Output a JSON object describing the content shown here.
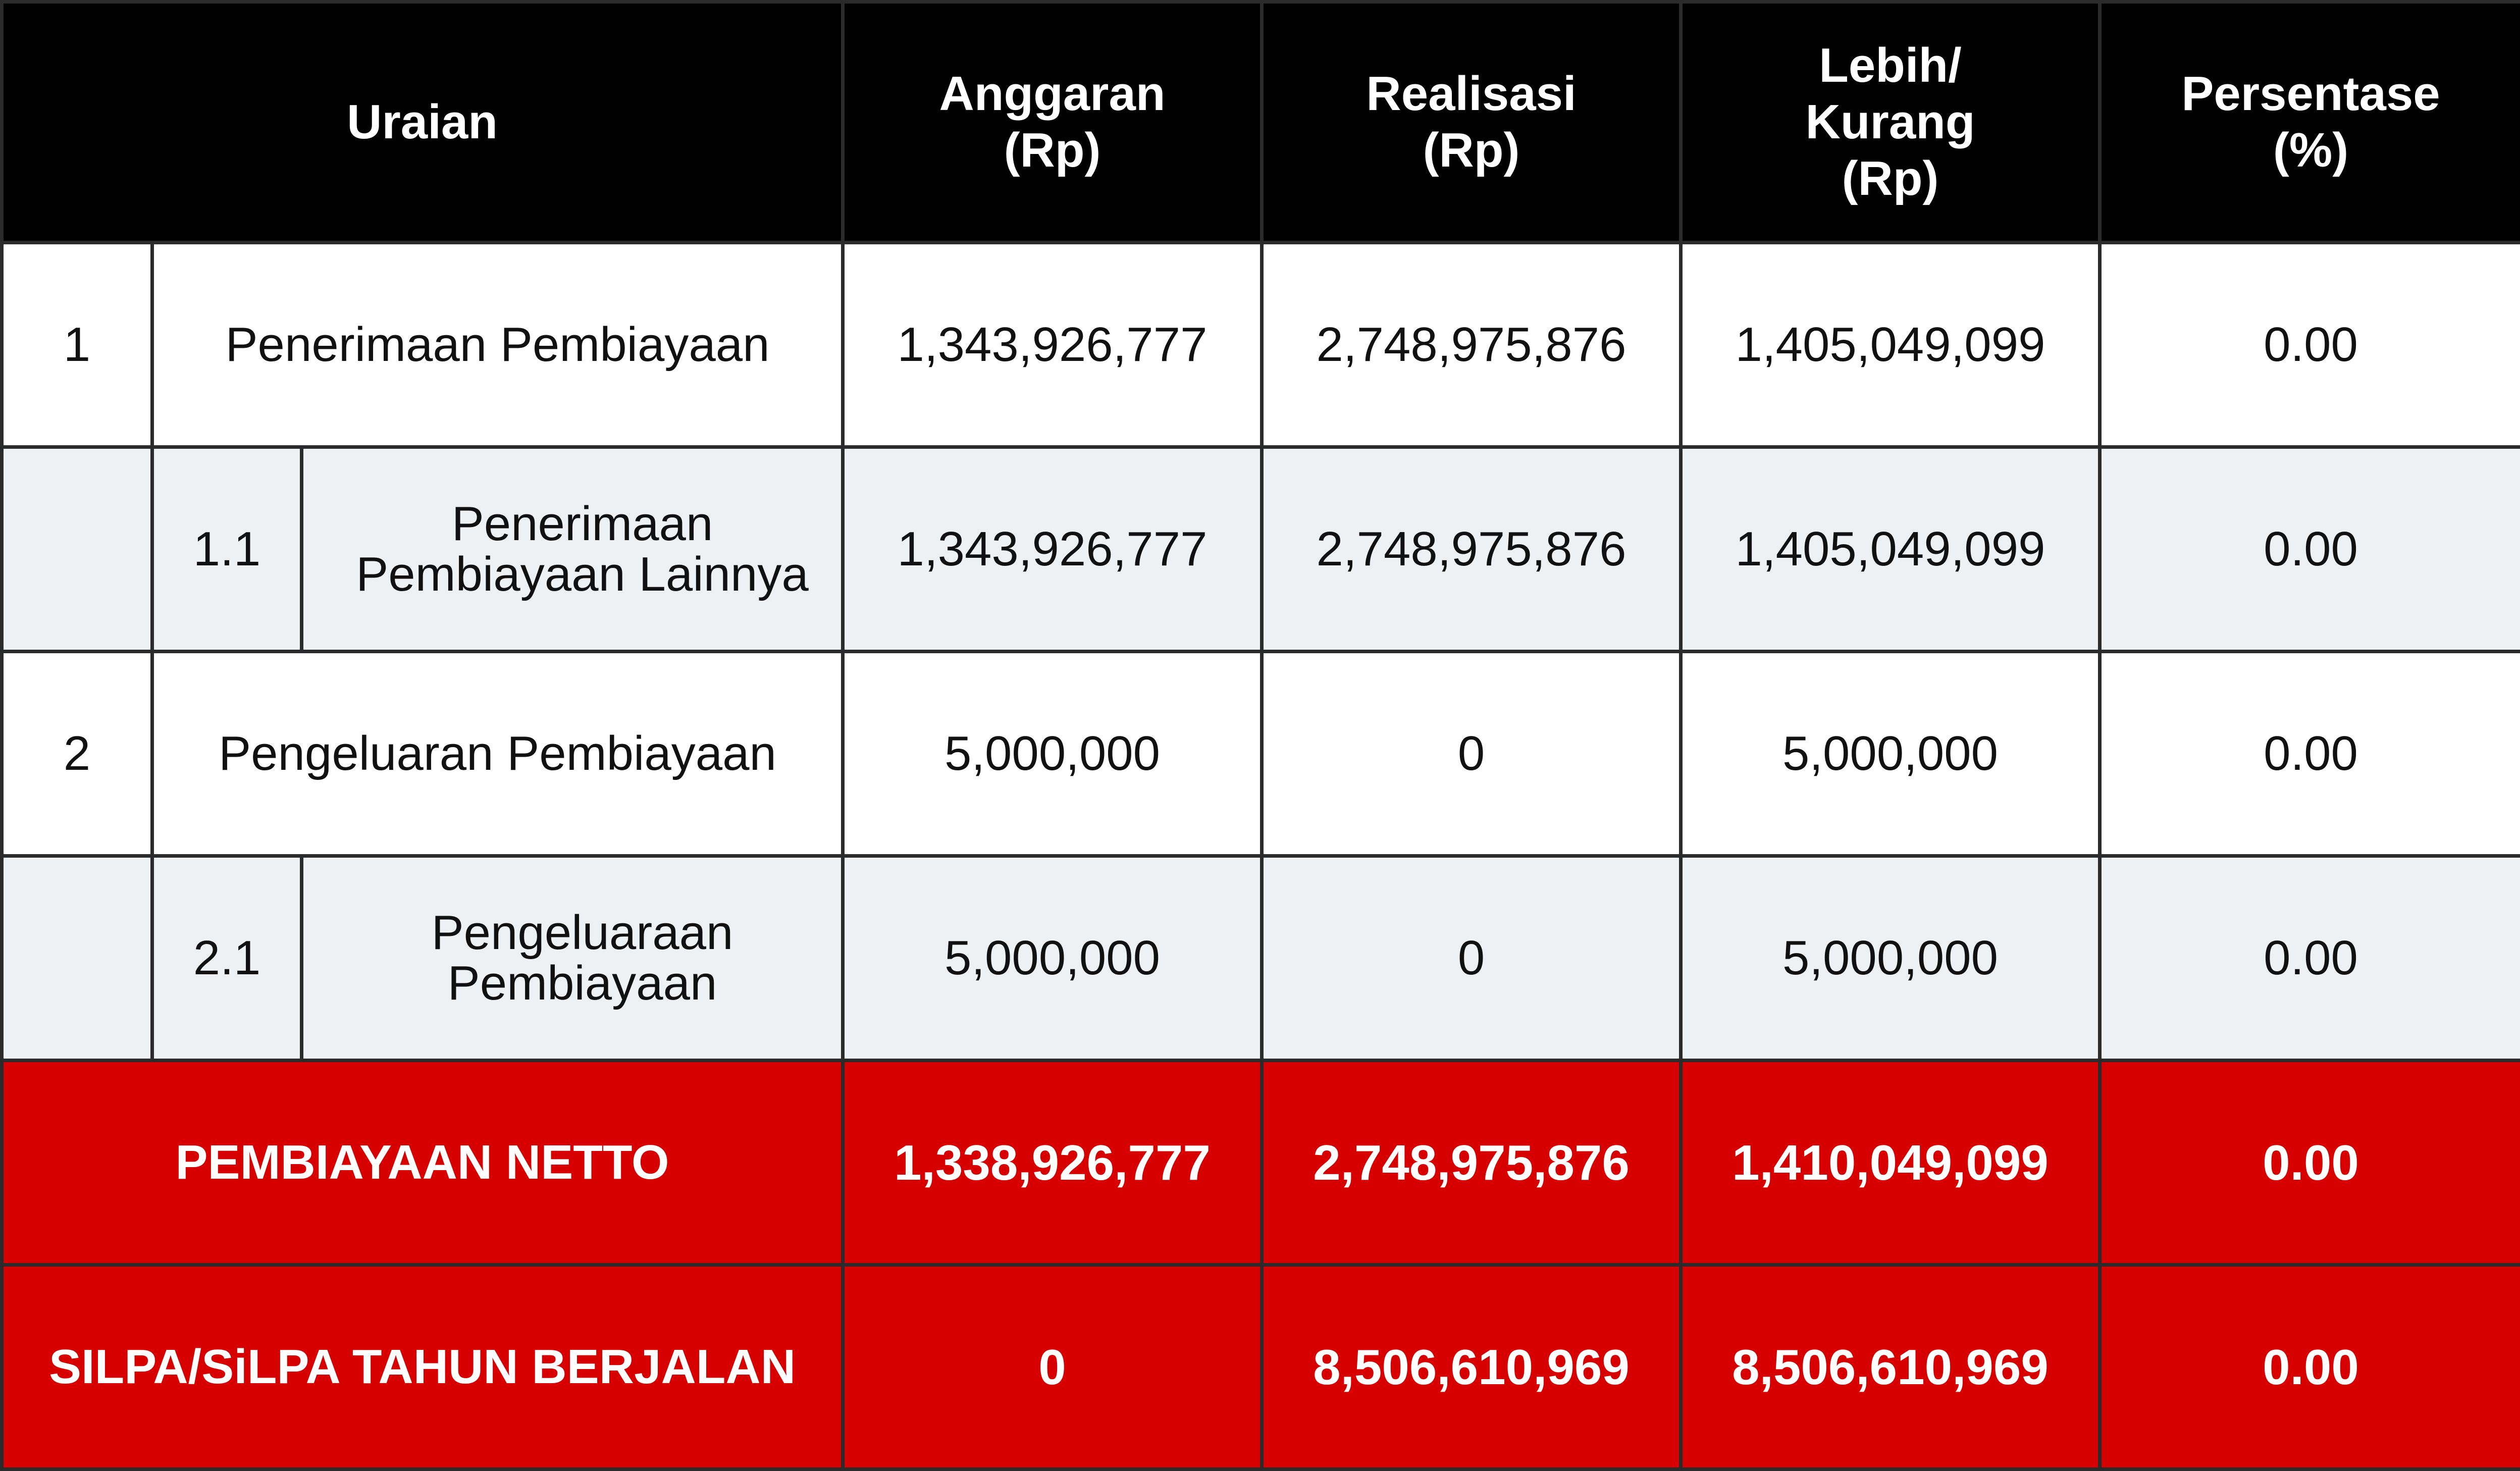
{
  "header": {
    "uraian": "Uraian",
    "anggaran": [
      "Anggaran",
      "(Rp)"
    ],
    "realisasi": [
      "Realisasi",
      "(Rp)"
    ],
    "lebih_kurang": [
      "Lebih/",
      "Kurang",
      "(Rp)"
    ],
    "persentase": [
      "Persentase",
      "(%)"
    ]
  },
  "rows": [
    {
      "no": "1",
      "sub": "",
      "label": "Penerimaan Pembiayaan",
      "anggaran": "1,343,926,777",
      "realisasi": "2,748,975,876",
      "lebih_kurang": "1,405,049,099",
      "persentase": "0.00"
    },
    {
      "no": "",
      "sub": "1.1",
      "label": "Penerimaan Pembiayaan Lainnya",
      "anggaran": "1,343,926,777",
      "realisasi": "2,748,975,876",
      "lebih_kurang": "1,405,049,099",
      "persentase": "0.00"
    },
    {
      "no": "2",
      "sub": "",
      "label": "Pengeluaran Pembiayaan",
      "anggaran": "5,000,000",
      "realisasi": "0",
      "lebih_kurang": "5,000,000",
      "persentase": "0.00"
    },
    {
      "no": "",
      "sub": "2.1",
      "label": "Pengeluaraan Pembiayaan",
      "anggaran": "5,000,000",
      "realisasi": "0",
      "lebih_kurang": "5,000,000",
      "persentase": "0.00"
    }
  ],
  "totals": [
    {
      "label": "PEMBIAYAAN NETTO",
      "anggaran": "1,338,926,777",
      "realisasi": "2,748,975,876",
      "lebih_kurang": "1,410,049,099",
      "persentase": "0.00"
    },
    {
      "label": "SILPA/SiLPA TAHUN BERJALAN",
      "anggaran": "0",
      "realisasi": "8,506,610,969",
      "lebih_kurang": "8,506,610,969",
      "persentase": "0.00"
    }
  ],
  "colors": {
    "header_bg": "#000000",
    "total_bg": "#d70000",
    "sub_row_bg": "#edf1f3"
  }
}
